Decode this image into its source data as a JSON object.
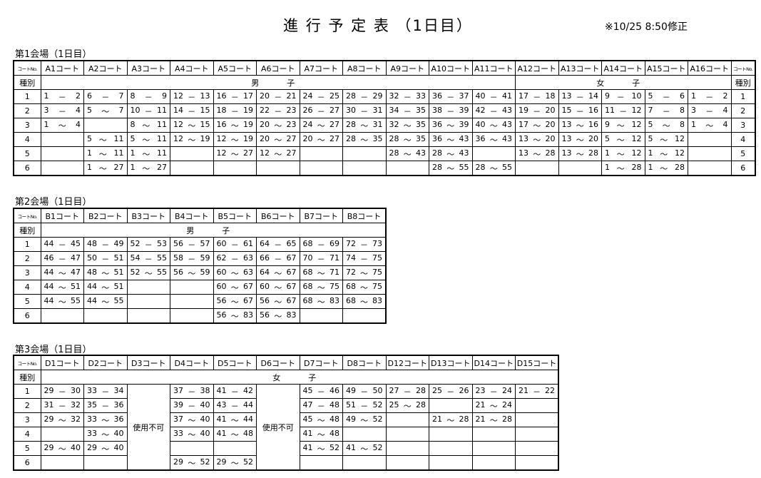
{
  "header": {
    "title": "進 行 予 定 表 （1日目）",
    "note": "※10/25 8:50修正"
  },
  "tables": [
    {
      "caption": "第1会場（1日目）",
      "corner": "コートNo.",
      "right_corner": "コートNo.",
      "kind_label": "種別",
      "right_kind_label": "種別",
      "columns": [
        "A1コート",
        "A2コート",
        "A3コート",
        "A4コート",
        "A5コート",
        "A6コート",
        "A7コート",
        "A8コート",
        "A9コート",
        "A10コート",
        "A11コート",
        "A12コート",
        "A13コート",
        "A14コート",
        "A15コート",
        "A16コート"
      ],
      "kinds": [
        {
          "label": "男　子",
          "span": 11
        },
        {
          "label": "女　子",
          "span": 5
        }
      ],
      "rows": [
        {
          "no": "1",
          "right_no": "1",
          "cells": [
            [
              "1",
              "－",
              "2"
            ],
            [
              "6",
              "－",
              "7"
            ],
            [
              "8",
              "－",
              "9"
            ],
            [
              "12",
              "－",
              "13"
            ],
            [
              "16",
              "－",
              "17"
            ],
            [
              "20",
              "－",
              "21"
            ],
            [
              "24",
              "－",
              "25"
            ],
            [
              "28",
              "－",
              "29"
            ],
            [
              "32",
              "－",
              "33"
            ],
            [
              "36",
              "－",
              "37"
            ],
            [
              "40",
              "－",
              "41"
            ],
            [
              "17",
              "－",
              "18"
            ],
            [
              "13",
              "－",
              "14"
            ],
            [
              "9",
              "－",
              "10"
            ],
            [
              "5",
              "－",
              "6"
            ],
            [
              "1",
              "－",
              "2"
            ]
          ]
        },
        {
          "no": "2",
          "right_no": "2",
          "cells": [
            [
              "3",
              "－",
              "4"
            ],
            [
              "5",
              "～",
              "7"
            ],
            [
              "10",
              "－",
              "11"
            ],
            [
              "14",
              "－",
              "15"
            ],
            [
              "18",
              "－",
              "19"
            ],
            [
              "22",
              "－",
              "23"
            ],
            [
              "26",
              "－",
              "27"
            ],
            [
              "30",
              "－",
              "31"
            ],
            [
              "34",
              "－",
              "35"
            ],
            [
              "38",
              "－",
              "39"
            ],
            [
              "42",
              "－",
              "43"
            ],
            [
              "19",
              "－",
              "20"
            ],
            [
              "15",
              "－",
              "16"
            ],
            [
              "11",
              "－",
              "12"
            ],
            [
              "7",
              "－",
              "8"
            ],
            [
              "3",
              "－",
              "4"
            ]
          ]
        },
        {
          "no": "3",
          "right_no": "3",
          "cells": [
            [
              "1",
              "～",
              "4"
            ],
            null,
            [
              "8",
              "～",
              "11"
            ],
            [
              "12",
              "～",
              "15"
            ],
            [
              "16",
              "～",
              "19"
            ],
            [
              "20",
              "～",
              "23"
            ],
            [
              "24",
              "～",
              "27"
            ],
            [
              "28",
              "～",
              "31"
            ],
            [
              "32",
              "～",
              "35"
            ],
            [
              "36",
              "～",
              "39"
            ],
            [
              "40",
              "～",
              "43"
            ],
            [
              "17",
              "～",
              "20"
            ],
            [
              "13",
              "～",
              "16"
            ],
            [
              "9",
              "～",
              "12"
            ],
            [
              "5",
              "～",
              "8"
            ],
            [
              "1",
              "～",
              "4"
            ]
          ]
        },
        {
          "no": "4",
          "right_no": "4",
          "cells": [
            null,
            [
              "5",
              "～",
              "11"
            ],
            [
              "5",
              "～",
              "11"
            ],
            [
              "12",
              "～",
              "19"
            ],
            [
              "12",
              "～",
              "19"
            ],
            [
              "20",
              "～",
              "27"
            ],
            [
              "20",
              "～",
              "27"
            ],
            [
              "28",
              "～",
              "35"
            ],
            [
              "28",
              "～",
              "35"
            ],
            [
              "36",
              "～",
              "43"
            ],
            [
              "36",
              "～",
              "43"
            ],
            [
              "13",
              "～",
              "20"
            ],
            [
              "13",
              "～",
              "20"
            ],
            [
              "5",
              "～",
              "12"
            ],
            [
              "5",
              "～",
              "12"
            ],
            null
          ]
        },
        {
          "no": "5",
          "right_no": "5",
          "cells": [
            null,
            [
              "1",
              "～",
              "11"
            ],
            [
              "1",
              "～",
              "11"
            ],
            null,
            [
              "12",
              "～",
              "27"
            ],
            [
              "12",
              "～",
              "27"
            ],
            null,
            null,
            [
              "28",
              "～",
              "43"
            ],
            [
              "28",
              "～",
              "43"
            ],
            null,
            [
              "13",
              "～",
              "28"
            ],
            [
              "13",
              "～",
              "28"
            ],
            [
              "1",
              "～",
              "12"
            ],
            [
              "1",
              "～",
              "12"
            ],
            null
          ]
        },
        {
          "no": "6",
          "right_no": "6",
          "cells": [
            null,
            [
              "1",
              "～",
              "27"
            ],
            [
              "1",
              "～",
              "27"
            ],
            null,
            null,
            null,
            null,
            null,
            null,
            [
              "28",
              "～",
              "55"
            ],
            [
              "28",
              "～",
              "55"
            ],
            null,
            null,
            [
              "1",
              "～",
              "28"
            ],
            [
              "1",
              "～",
              "28"
            ],
            null
          ]
        }
      ]
    },
    {
      "caption": "第2会場（1日目）",
      "corner": "コートNo.",
      "kind_label": "種別",
      "columns": [
        "B1コート",
        "B2コート",
        "B3コート",
        "B4コート",
        "B5コート",
        "B6コート",
        "B7コート",
        "B8コート"
      ],
      "kinds": [
        {
          "label": "男　子",
          "span": 8
        }
      ],
      "rows": [
        {
          "no": "1",
          "cells": [
            [
              "44",
              "－",
              "45"
            ],
            [
              "48",
              "－",
              "49"
            ],
            [
              "52",
              "－",
              "53"
            ],
            [
              "56",
              "－",
              "57"
            ],
            [
              "60",
              "－",
              "61"
            ],
            [
              "64",
              "－",
              "65"
            ],
            [
              "68",
              "－",
              "69"
            ],
            [
              "72",
              "－",
              "73"
            ]
          ]
        },
        {
          "no": "2",
          "cells": [
            [
              "46",
              "－",
              "47"
            ],
            [
              "50",
              "－",
              "51"
            ],
            [
              "54",
              "－",
              "55"
            ],
            [
              "58",
              "－",
              "59"
            ],
            [
              "62",
              "－",
              "63"
            ],
            [
              "66",
              "－",
              "67"
            ],
            [
              "70",
              "－",
              "71"
            ],
            [
              "74",
              "－",
              "75"
            ]
          ]
        },
        {
          "no": "3",
          "cells": [
            [
              "44",
              "～",
              "47"
            ],
            [
              "48",
              "～",
              "51"
            ],
            [
              "52",
              "～",
              "55"
            ],
            [
              "56",
              "～",
              "59"
            ],
            [
              "60",
              "～",
              "63"
            ],
            [
              "64",
              "～",
              "67"
            ],
            [
              "68",
              "～",
              "71"
            ],
            [
              "72",
              "～",
              "75"
            ]
          ]
        },
        {
          "no": "4",
          "cells": [
            [
              "44",
              "～",
              "51"
            ],
            [
              "44",
              "～",
              "51"
            ],
            null,
            null,
            [
              "60",
              "～",
              "67"
            ],
            [
              "60",
              "～",
              "67"
            ],
            [
              "68",
              "～",
              "75"
            ],
            [
              "68",
              "～",
              "75"
            ]
          ]
        },
        {
          "no": "5",
          "cells": [
            [
              "44",
              "～",
              "55"
            ],
            [
              "44",
              "～",
              "55"
            ],
            null,
            null,
            [
              "56",
              "～",
              "67"
            ],
            [
              "56",
              "～",
              "67"
            ],
            [
              "68",
              "～",
              "83"
            ],
            [
              "68",
              "～",
              "83"
            ]
          ]
        },
        {
          "no": "6",
          "cells": [
            null,
            null,
            null,
            null,
            [
              "56",
              "～",
              "83"
            ],
            [
              "56",
              "～",
              "83"
            ],
            null,
            null
          ]
        }
      ]
    },
    {
      "caption": "第3会場（1日目）",
      "corner": "コートNo.",
      "kind_label": "種別",
      "columns": [
        "D1コート",
        "D2コート",
        "D3コート",
        "D4コート",
        "D5コート",
        "D6コート",
        "D7コート",
        "D8コート",
        "D12コート",
        "D13コート",
        "D14コート",
        "D15コート"
      ],
      "kinds": [
        {
          "label": "女　子",
          "span": 12
        }
      ],
      "rows": [
        {
          "no": "1",
          "cells": [
            [
              "29",
              "－",
              "30"
            ],
            [
              "33",
              "－",
              "34"
            ],
            "使用不可",
            [
              "37",
              "－",
              "38"
            ],
            [
              "41",
              "－",
              "42"
            ],
            "使用不可",
            [
              "45",
              "－",
              "46"
            ],
            [
              "49",
              "－",
              "50"
            ],
            [
              "27",
              "－",
              "28"
            ],
            [
              "25",
              "－",
              "26"
            ],
            [
              "23",
              "－",
              "24"
            ],
            [
              "21",
              "－",
              "22"
            ]
          ]
        },
        {
          "no": "2",
          "cells": [
            [
              "31",
              "－",
              "32"
            ],
            [
              "35",
              "－",
              "36"
            ],
            null,
            [
              "39",
              "－",
              "40"
            ],
            [
              "43",
              "－",
              "44"
            ],
            null,
            [
              "47",
              "－",
              "48"
            ],
            [
              "51",
              "－",
              "52"
            ],
            [
              "25",
              "～",
              "28"
            ],
            null,
            [
              "21",
              "～",
              "24"
            ],
            null
          ]
        },
        {
          "no": "3",
          "cells": [
            [
              "29",
              "～",
              "32"
            ],
            [
              "33",
              "～",
              "36"
            ],
            null,
            [
              "37",
              "～",
              "40"
            ],
            [
              "41",
              "～",
              "44"
            ],
            null,
            [
              "45",
              "～",
              "48"
            ],
            [
              "49",
              "～",
              "52"
            ],
            null,
            [
              "21",
              "～",
              "28"
            ],
            [
              "21",
              "～",
              "28"
            ],
            null
          ]
        },
        {
          "no": "4",
          "cells": [
            null,
            [
              "33",
              "～",
              "40"
            ],
            null,
            [
              "33",
              "～",
              "40"
            ],
            [
              "41",
              "～",
              "48"
            ],
            null,
            [
              "41",
              "～",
              "48"
            ],
            null,
            null,
            null,
            null,
            null
          ]
        },
        {
          "no": "5",
          "cells": [
            [
              "29",
              "～",
              "40"
            ],
            [
              "29",
              "～",
              "40"
            ],
            null,
            null,
            null,
            null,
            [
              "41",
              "～",
              "52"
            ],
            [
              "41",
              "～",
              "52"
            ],
            null,
            null,
            null,
            null
          ]
        },
        {
          "no": "6",
          "cells": [
            null,
            null,
            null,
            [
              "29",
              "～",
              "52"
            ],
            [
              "29",
              "～",
              "52"
            ],
            null,
            null,
            null,
            null,
            null,
            null,
            null
          ]
        }
      ]
    }
  ]
}
